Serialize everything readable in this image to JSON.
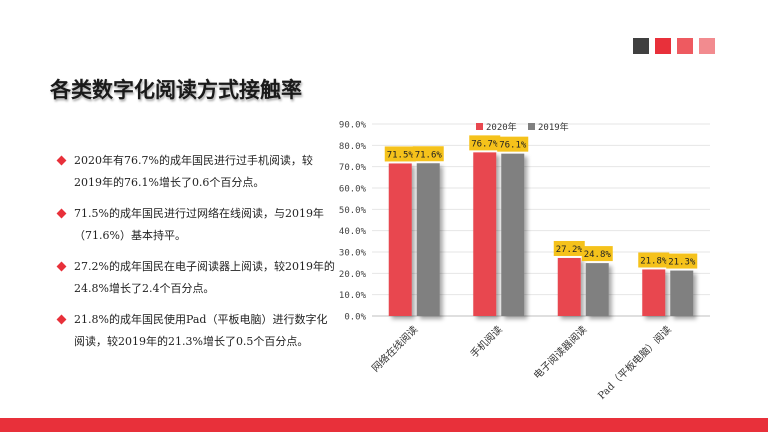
{
  "colors": {
    "accent": "#e8303a",
    "series_2020": "#e8474f",
    "series_2019": "#808080",
    "label_bg": "#f5c21b",
    "square_1": "#404040",
    "square_2": "#e8303a",
    "square_3": "#ee5a60",
    "square_4": "#f28b8f"
  },
  "page": {
    "title": "各类数字化阅读方式接触率"
  },
  "bullets": [
    {
      "text": "2020年有76.7%的成年国民进行过手机阅读，较2019年的76.1%增长了0.6个百分点。"
    },
    {
      "text": "71.5%的成年国民进行过网络在线阅读，与2019年（71.6%）基本持平。"
    },
    {
      "text": "27.2%的成年国民在电子阅读器上阅读，较2019年的24.8%增长了2.4个百分点。"
    },
    {
      "text": "21.8%的成年国民使用Pad（平板电脑）进行数字化阅读，较2019年的21.3%增长了0.5个百分点。"
    }
  ],
  "chart_data": {
    "type": "bar",
    "categories": [
      "网络在线阅读",
      "手机阅读",
      "电子阅读器阅读",
      "Pad（平板电脑）阅读"
    ],
    "series": [
      {
        "name": "2020年",
        "values": [
          71.5,
          76.7,
          27.2,
          21.8
        ],
        "labels": [
          "71.5%",
          "76.7%",
          "27.2%",
          "21.8%"
        ]
      },
      {
        "name": "2019年",
        "values": [
          71.6,
          76.1,
          24.8,
          21.3
        ],
        "labels": [
          "71.6%",
          "76.1%",
          "24.8%",
          "21.3%"
        ]
      }
    ],
    "yticks": [
      "0.0%",
      "10.0%",
      "20.0%",
      "30.0%",
      "40.0%",
      "50.0%",
      "60.0%",
      "70.0%",
      "80.0%",
      "90.0%"
    ],
    "ylim": [
      0,
      90
    ],
    "grid": true,
    "legend_position": "top"
  }
}
